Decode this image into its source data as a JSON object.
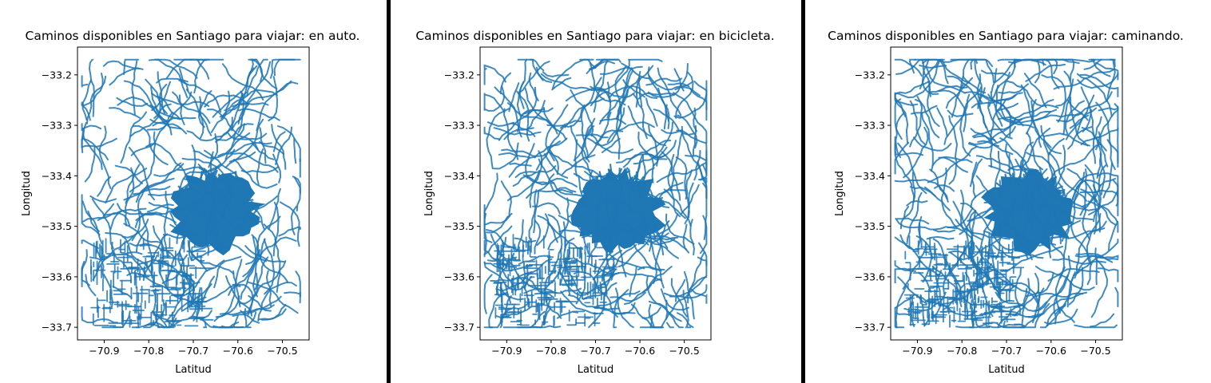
{
  "figure": {
    "background": "#ffffff",
    "divider_color": "#000000"
  },
  "chart_data": [
    {
      "type": "line",
      "title": "Caminos disponibles en Santiago para viajar: en auto.",
      "xlabel": "Latitud",
      "ylabel": "Longitud",
      "xlim": [
        -70.96,
        -70.44
      ],
      "ylim": [
        -33.725,
        -33.145
      ],
      "x_ticks": [
        -70.9,
        -70.8,
        -70.7,
        -70.6,
        -70.5
      ],
      "x_tick_labels": [
        "−70.9",
        "−70.8",
        "−70.7",
        "−70.6",
        "−70.5"
      ],
      "y_ticks": [
        -33.2,
        -33.3,
        -33.4,
        -33.5,
        -33.6,
        -33.7
      ],
      "y_tick_labels": [
        "−33.2",
        "−33.3",
        "−33.4",
        "−33.5",
        "−33.6",
        "−33.7"
      ],
      "color": "#1f77b4",
      "grid": false,
      "network_extent": {
        "x": [
          -70.95,
          -70.46
        ],
        "y": [
          -33.7,
          -33.17
        ]
      }
    },
    {
      "type": "line",
      "title": "Caminos disponibles en Santiago para viajar: en bicicleta.",
      "xlabel": "Latitud",
      "ylabel": "Longitud",
      "xlim": [
        -70.96,
        -70.44
      ],
      "ylim": [
        -33.725,
        -33.145
      ],
      "x_ticks": [
        -70.9,
        -70.8,
        -70.7,
        -70.6,
        -70.5
      ],
      "x_tick_labels": [
        "−70.9",
        "−70.8",
        "−70.7",
        "−70.6",
        "−70.5"
      ],
      "y_ticks": [
        -33.2,
        -33.3,
        -33.4,
        -33.5,
        -33.6,
        -33.7
      ],
      "y_tick_labels": [
        "−33.2",
        "−33.3",
        "−33.4",
        "−33.5",
        "−33.6",
        "−33.7"
      ],
      "color": "#1f77b4",
      "grid": false,
      "network_extent": {
        "x": [
          -70.95,
          -70.45
        ],
        "y": [
          -33.7,
          -33.17
        ]
      }
    },
    {
      "type": "line",
      "title": "Caminos disponibles en Santiago para viajar: caminando.",
      "xlabel": "Latitud",
      "ylabel": "Longitud",
      "xlim": [
        -70.96,
        -70.44
      ],
      "ylim": [
        -33.725,
        -33.145
      ],
      "x_ticks": [
        -70.9,
        -70.8,
        -70.7,
        -70.6,
        -70.5
      ],
      "x_tick_labels": [
        "−70.9",
        "−70.8",
        "−70.7",
        "−70.6",
        "−70.5"
      ],
      "y_ticks": [
        -33.2,
        -33.3,
        -33.4,
        -33.5,
        -33.6,
        -33.7
      ],
      "y_tick_labels": [
        "−33.2",
        "−33.3",
        "−33.4",
        "−33.5",
        "−33.6",
        "−33.7"
      ],
      "color": "#1f77b4",
      "grid": false,
      "network_extent": {
        "x": [
          -70.95,
          -70.45
        ],
        "y": [
          -33.7,
          -33.17
        ]
      }
    }
  ]
}
